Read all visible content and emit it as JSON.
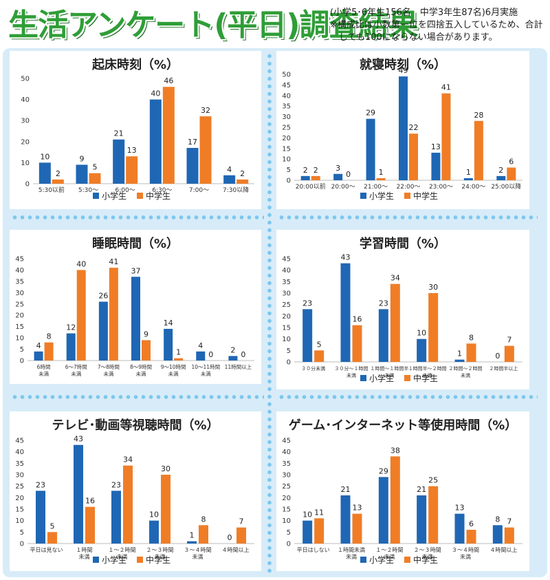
{
  "page": {
    "title": "生活アンケート(平日)調査結果",
    "subtitle_line1": "(小学5･6年生156名　中学3年生87名)6月実施",
    "subtitle_line2": "※構成比は小数第一位を四捨五入しているため、合計",
    "subtitle_line3": "　しても100にならない場合があります。"
  },
  "colors": {
    "elementary": "#1f67b4",
    "junior": "#f07d26",
    "frame": "#d7ecf8",
    "dots": "#7ec7ee"
  },
  "legend": {
    "elementary": "小学生",
    "junior": "中学生"
  },
  "chart_data": [
    {
      "type": "bar",
      "title": "起床時刻（%）",
      "categories": [
        "5:30以前",
        "5:30〜",
        "6:00〜",
        "6:30〜",
        "7:00〜",
        "7:30以降"
      ],
      "series": [
        {
          "name": "小学生",
          "values": [
            10,
            9,
            21,
            40,
            17,
            4
          ]
        },
        {
          "name": "中学生",
          "values": [
            2,
            5,
            13,
            46,
            32,
            2
          ]
        }
      ],
      "ylim": [
        0,
        50
      ],
      "yticks": [
        0,
        10,
        20,
        30,
        40,
        50
      ],
      "legend_position": "bottom",
      "grid": false
    },
    {
      "type": "bar",
      "title": "就寝時刻（%）",
      "categories": [
        "20:00以前",
        "20:00〜",
        "21:00〜",
        "22:00〜",
        "23:00〜",
        "24:00〜",
        "25:00以降"
      ],
      "series": [
        {
          "name": "小学生",
          "values": [
            2,
            3,
            29,
            49,
            13,
            1,
            2
          ]
        },
        {
          "name": "中学生",
          "values": [
            2,
            0,
            1,
            22,
            41,
            28,
            6
          ]
        }
      ],
      "ylim": [
        0,
        50
      ],
      "yticks": [
        0,
        5,
        10,
        15,
        20,
        25,
        30,
        35,
        40,
        45,
        50
      ],
      "legend_position": "bottom",
      "grid": false
    },
    {
      "type": "bar",
      "title": "睡眠時間（%）",
      "categories": [
        "6時間\n未満",
        "6〜7時間\n未満",
        "7〜8時間\n未満",
        "8〜9時間\n未満",
        "9〜10時間\n未満",
        "10〜11時間\n未満",
        "11時間以上"
      ],
      "series": [
        {
          "name": "小学生",
          "values": [
            4,
            12,
            26,
            37,
            14,
            4,
            2
          ]
        },
        {
          "name": "中学生",
          "values": [
            8,
            40,
            41,
            9,
            1,
            0,
            0
          ]
        }
      ],
      "ylim": [
        0,
        45
      ],
      "yticks": [
        0,
        5,
        10,
        15,
        20,
        25,
        30,
        35,
        40,
        45
      ],
      "legend_position": "none",
      "grid": false
    },
    {
      "type": "bar",
      "title": "学習時間（%）",
      "categories": [
        "３０分未満",
        "３０分〜１時間\n未満",
        "１時間〜１時間半\n未満",
        "１時間半〜２時間\n未満",
        "２時間〜２時間\n未満",
        "２時間半以上"
      ],
      "series": [
        {
          "name": "小学生",
          "values": [
            23,
            43,
            23,
            10,
            1,
            0
          ]
        },
        {
          "name": "中学生",
          "values": [
            5,
            16,
            34,
            30,
            8,
            7
          ]
        }
      ],
      "ylim": [
        0,
        45
      ],
      "yticks": [
        0,
        5,
        10,
        15,
        20,
        25,
        30,
        35,
        40,
        45
      ],
      "legend_position": "bottom",
      "grid": false
    },
    {
      "type": "bar",
      "title": "テレビ･動画等視聴時間（%）",
      "categories": [
        "平日は見ない",
        "１時間\n未満",
        "１〜２時間\n未満",
        "２〜３時間\n未満",
        "３〜４時間\n未満",
        "４時間以上"
      ],
      "series": [
        {
          "name": "小学生",
          "values": [
            23,
            43,
            23,
            10,
            1,
            0
          ]
        },
        {
          "name": "中学生",
          "values": [
            5,
            16,
            34,
            30,
            8,
            7
          ]
        }
      ],
      "ylim": [
        0,
        45
      ],
      "yticks": [
        0,
        5,
        10,
        15,
        20,
        25,
        30,
        35,
        40,
        45
      ],
      "legend_position": "bottom",
      "grid": false
    },
    {
      "type": "bar",
      "title": "ゲーム･インターネット等使用時間（%）",
      "categories": [
        "平日はしない",
        "１時間未満\n未満",
        "１〜２時間\n未満",
        "２〜３時間\n未満",
        "３〜４時間\n未満",
        "４時間以上"
      ],
      "series": [
        {
          "name": "小学生",
          "values": [
            10,
            21,
            29,
            21,
            13,
            8
          ]
        },
        {
          "name": "中学生",
          "values": [
            11,
            13,
            38,
            25,
            6,
            7
          ]
        }
      ],
      "ylim": [
        0,
        45
      ],
      "yticks": [
        0,
        5,
        10,
        15,
        20,
        25,
        30,
        35,
        40,
        45
      ],
      "legend_position": "bottom",
      "grid": false
    }
  ]
}
